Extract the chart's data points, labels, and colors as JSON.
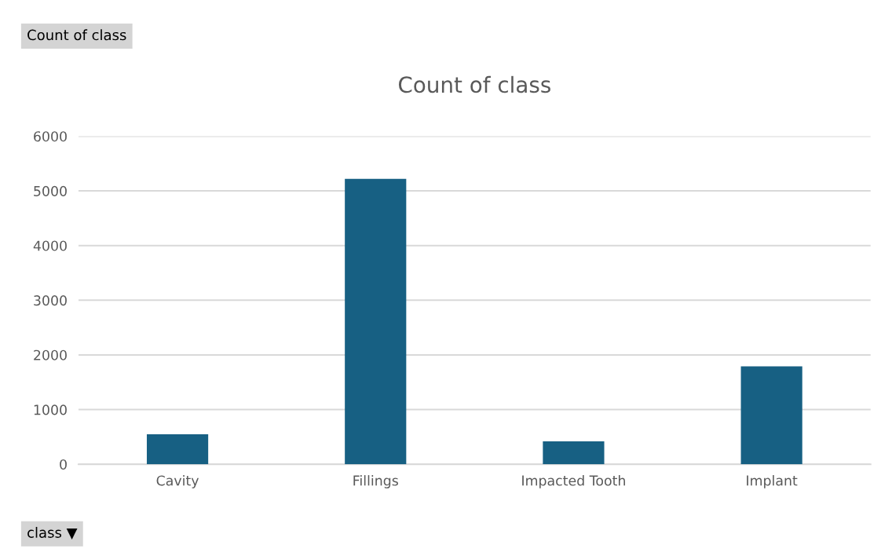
{
  "chart_data": {
    "type": "bar",
    "title": "Count of class",
    "categories": [
      "Cavity",
      "Fillings",
      "Impacted Tooth",
      "Implant"
    ],
    "values": [
      550,
      5220,
      420,
      1790
    ],
    "color": "#176083",
    "ylim": [
      0,
      6000
    ],
    "yticks": [
      0,
      1000,
      2000,
      3000,
      4000,
      5000,
      6000
    ],
    "grid": "y",
    "annotations": [
      "Count of class",
      "class ▼"
    ]
  }
}
